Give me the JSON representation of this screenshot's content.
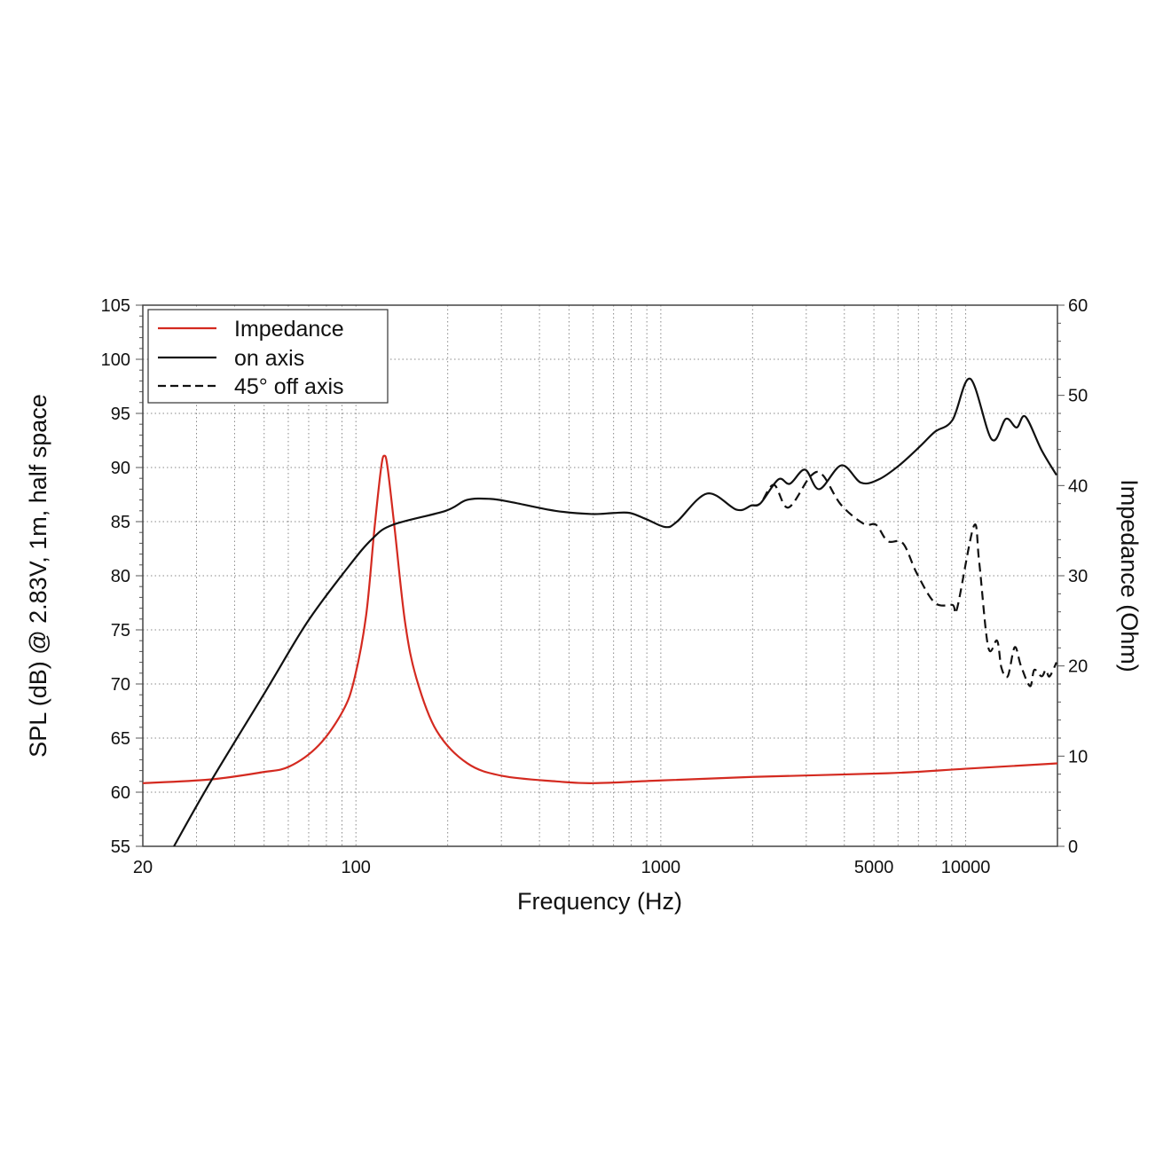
{
  "chart_data": {
    "type": "line",
    "title": "",
    "xlabel": "Frequency (Hz)",
    "ylabel": "SPL (dB) @ 2.83V, 1m, half space",
    "y2label": "Impedance (Ohm)",
    "xscale": "log",
    "xlim": [
      20,
      20000
    ],
    "ylim": [
      55,
      105
    ],
    "y2lim": [
      0,
      60
    ],
    "grid": true,
    "legend_position": "top-left",
    "x_tick_labels": [
      {
        "value": 20,
        "label": "20"
      },
      {
        "value": 100,
        "label": "100"
      },
      {
        "value": 1000,
        "label": "1000"
      },
      {
        "value": 5000,
        "label": "5000"
      },
      {
        "value": 10000,
        "label": "10000"
      }
    ],
    "y_ticks": [
      55,
      60,
      65,
      70,
      75,
      80,
      85,
      90,
      95,
      100,
      105
    ],
    "y2_ticks": [
      0,
      10,
      20,
      30,
      40,
      50,
      60
    ],
    "series": [
      {
        "name": "Impedance",
        "axis": "right",
        "color": "#d42a20",
        "dash": "solid",
        "x": [
          20,
          33,
          49,
          60.5,
          75.5,
          90.6,
          98.9,
          108,
          115,
          121,
          124,
          127,
          134,
          145,
          158,
          184,
          232,
          303,
          454,
          600,
          1000,
          2000,
          5546,
          10000,
          20000
        ],
        "y": [
          7.0,
          7.4,
          8.2,
          8.85,
          11.2,
          15.0,
          18.6,
          25.6,
          35.2,
          42.0,
          43.3,
          42.0,
          35.2,
          24.8,
          18.6,
          12.8,
          9.2,
          7.8,
          7.2,
          7.0,
          7.3,
          7.7,
          8.1,
          8.6,
          9.2
        ]
      },
      {
        "name": "on axis",
        "axis": "left",
        "color": "#111111",
        "dash": "solid",
        "x": [
          25.3,
          33.1,
          50.5,
          69.2,
          94.3,
          113,
          132,
          197,
          231,
          276,
          324,
          450,
          593,
          700,
          792,
          900,
          1036,
          1130,
          1420,
          1774,
          1986,
          2124,
          2430,
          2650,
          2972,
          3310,
          3914,
          4536,
          5188,
          6054,
          7112,
          7926,
          9058,
          10352,
          12170,
          13552,
          14690,
          15704,
          17744,
          19860
        ],
        "y": [
          55.0,
          60.8,
          69.3,
          75.7,
          80.8,
          83.4,
          84.7,
          86.0,
          87.0,
          87.1,
          86.8,
          86.0,
          85.7,
          85.8,
          85.8,
          85.2,
          84.5,
          85.0,
          87.6,
          86.1,
          86.5,
          86.7,
          88.9,
          88.5,
          89.8,
          88.0,
          90.2,
          88.6,
          88.9,
          90.2,
          92.0,
          93.3,
          94.4,
          98.2,
          92.6,
          94.5,
          93.7,
          94.7,
          91.6,
          89.3
        ]
      },
      {
        "name": "45° off axis",
        "axis": "left",
        "color": "#111111",
        "dash": "dashed",
        "x": [
          1986,
          2124,
          2350,
          2618,
          3098,
          3396,
          3890,
          4628,
          5084,
          5546,
          6224,
          6920,
          7926,
          9058,
          9376,
          10640,
          11072,
          11858,
          12678,
          13100,
          13738,
          14488,
          15172,
          16256,
          16790,
          17744,
          18324,
          18838,
          19860
        ],
        "y": [
          86.5,
          86.7,
          88.4,
          86.3,
          89.2,
          89.3,
          86.6,
          84.8,
          84.7,
          83.2,
          83.0,
          80.2,
          77.5,
          77.3,
          77.0,
          84.6,
          81.3,
          73.4,
          74.0,
          71.5,
          70.7,
          73.4,
          71.7,
          69.8,
          71.3,
          70.7,
          71.3,
          70.7,
          72.0
        ]
      }
    ]
  },
  "legend": {
    "items": [
      "Impedance",
      "on axis",
      "45° off axis"
    ]
  }
}
